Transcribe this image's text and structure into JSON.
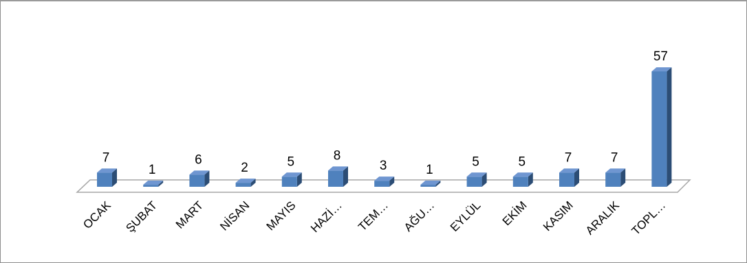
{
  "chart_data": {
    "type": "bar",
    "title": "",
    "xlabel": "",
    "ylabel": "",
    "categories": [
      "OCAK",
      "ŞUBAT",
      "MART",
      "NİSAN",
      "MAYIS",
      "HAZİ…",
      "TEM…",
      "AĞU…",
      "EYLÜL",
      "EKİM",
      "KASIM",
      "ARALIK",
      "TOPL…"
    ],
    "values": [
      7,
      1,
      6,
      2,
      5,
      8,
      3,
      1,
      5,
      5,
      7,
      7,
      57
    ],
    "ylim": [
      0,
      57
    ],
    "grid": false,
    "legend": "none",
    "style": "3d-column"
  },
  "colors": {
    "bar_front": "#4f81bd",
    "bar_side": "#2c4d75",
    "bar_top": "#6f96d1",
    "floor_stroke": "#a6a6a6",
    "border": "#8c8c8c"
  }
}
